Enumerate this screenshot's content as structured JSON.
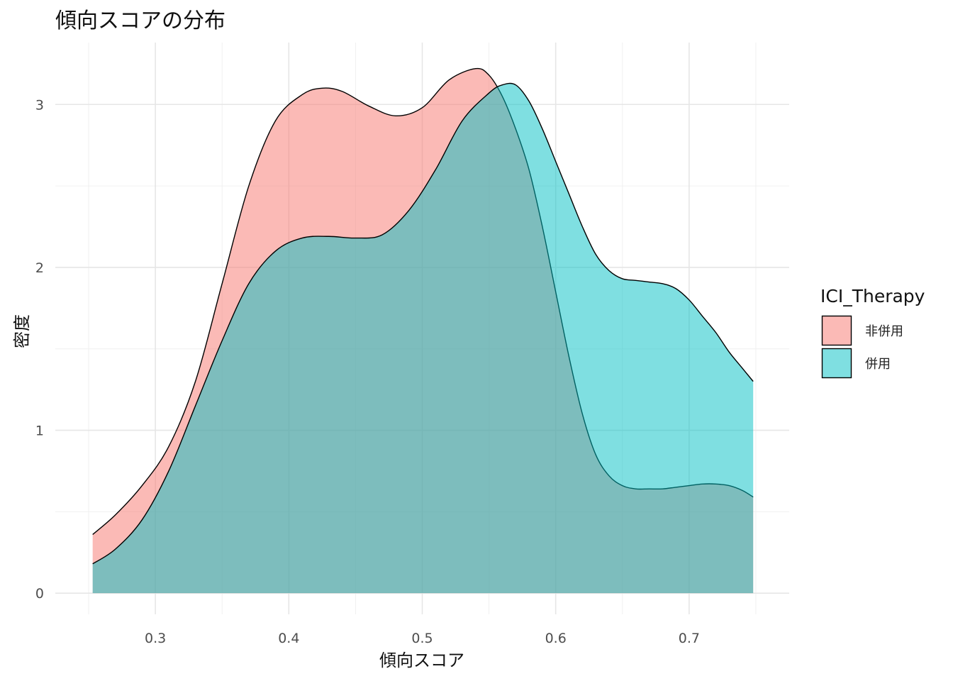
{
  "chart_data": {
    "type": "area",
    "title": "傾向スコアの分布",
    "xlabel": "傾向スコア",
    "ylabel": "密度",
    "xlim": [
      0.225,
      0.775
    ],
    "ylim": [
      -0.13,
      3.38
    ],
    "x_ticks": [
      0.3,
      0.4,
      0.5,
      0.6,
      0.7
    ],
    "x_tick_labels": [
      "0.3",
      "0.4",
      "0.5",
      "0.6",
      "0.7"
    ],
    "y_ticks": [
      0,
      1,
      2,
      3
    ],
    "y_tick_labels": [
      "0",
      "1",
      "2",
      "3"
    ],
    "grid": true,
    "legend": {
      "title": "ICI_Therapy",
      "position": "right"
    },
    "series": [
      {
        "name": "非併用",
        "color": "#F8766D",
        "x": [
          0.253,
          0.27,
          0.29,
          0.31,
          0.33,
          0.35,
          0.37,
          0.39,
          0.41,
          0.425,
          0.44,
          0.46,
          0.48,
          0.5,
          0.52,
          0.54,
          0.55,
          0.56,
          0.57,
          0.58,
          0.59,
          0.6,
          0.61,
          0.62,
          0.63,
          0.64,
          0.65,
          0.66,
          0.67,
          0.68,
          0.69,
          0.7,
          0.71,
          0.72,
          0.73,
          0.74,
          0.748
        ],
        "values": [
          0.36,
          0.48,
          0.66,
          0.9,
          1.3,
          1.9,
          2.5,
          2.9,
          3.06,
          3.1,
          3.08,
          2.99,
          2.93,
          2.98,
          3.15,
          3.22,
          3.18,
          3.05,
          2.85,
          2.6,
          2.25,
          1.85,
          1.45,
          1.1,
          0.85,
          0.72,
          0.66,
          0.64,
          0.64,
          0.64,
          0.65,
          0.66,
          0.67,
          0.67,
          0.66,
          0.63,
          0.59
        ]
      },
      {
        "name": "併用",
        "color": "#00BFC4",
        "x": [
          0.253,
          0.27,
          0.29,
          0.31,
          0.33,
          0.35,
          0.37,
          0.39,
          0.41,
          0.43,
          0.45,
          0.47,
          0.49,
          0.51,
          0.53,
          0.55,
          0.56,
          0.57,
          0.58,
          0.59,
          0.6,
          0.61,
          0.62,
          0.63,
          0.64,
          0.65,
          0.66,
          0.67,
          0.68,
          0.69,
          0.7,
          0.71,
          0.72,
          0.73,
          0.74,
          0.748
        ],
        "values": [
          0.18,
          0.27,
          0.45,
          0.75,
          1.15,
          1.55,
          1.9,
          2.1,
          2.18,
          2.19,
          2.18,
          2.2,
          2.35,
          2.6,
          2.9,
          3.07,
          3.12,
          3.12,
          3.02,
          2.85,
          2.65,
          2.45,
          2.25,
          2.08,
          1.98,
          1.93,
          1.92,
          1.91,
          1.9,
          1.87,
          1.8,
          1.7,
          1.6,
          1.48,
          1.38,
          1.3
        ]
      }
    ]
  }
}
